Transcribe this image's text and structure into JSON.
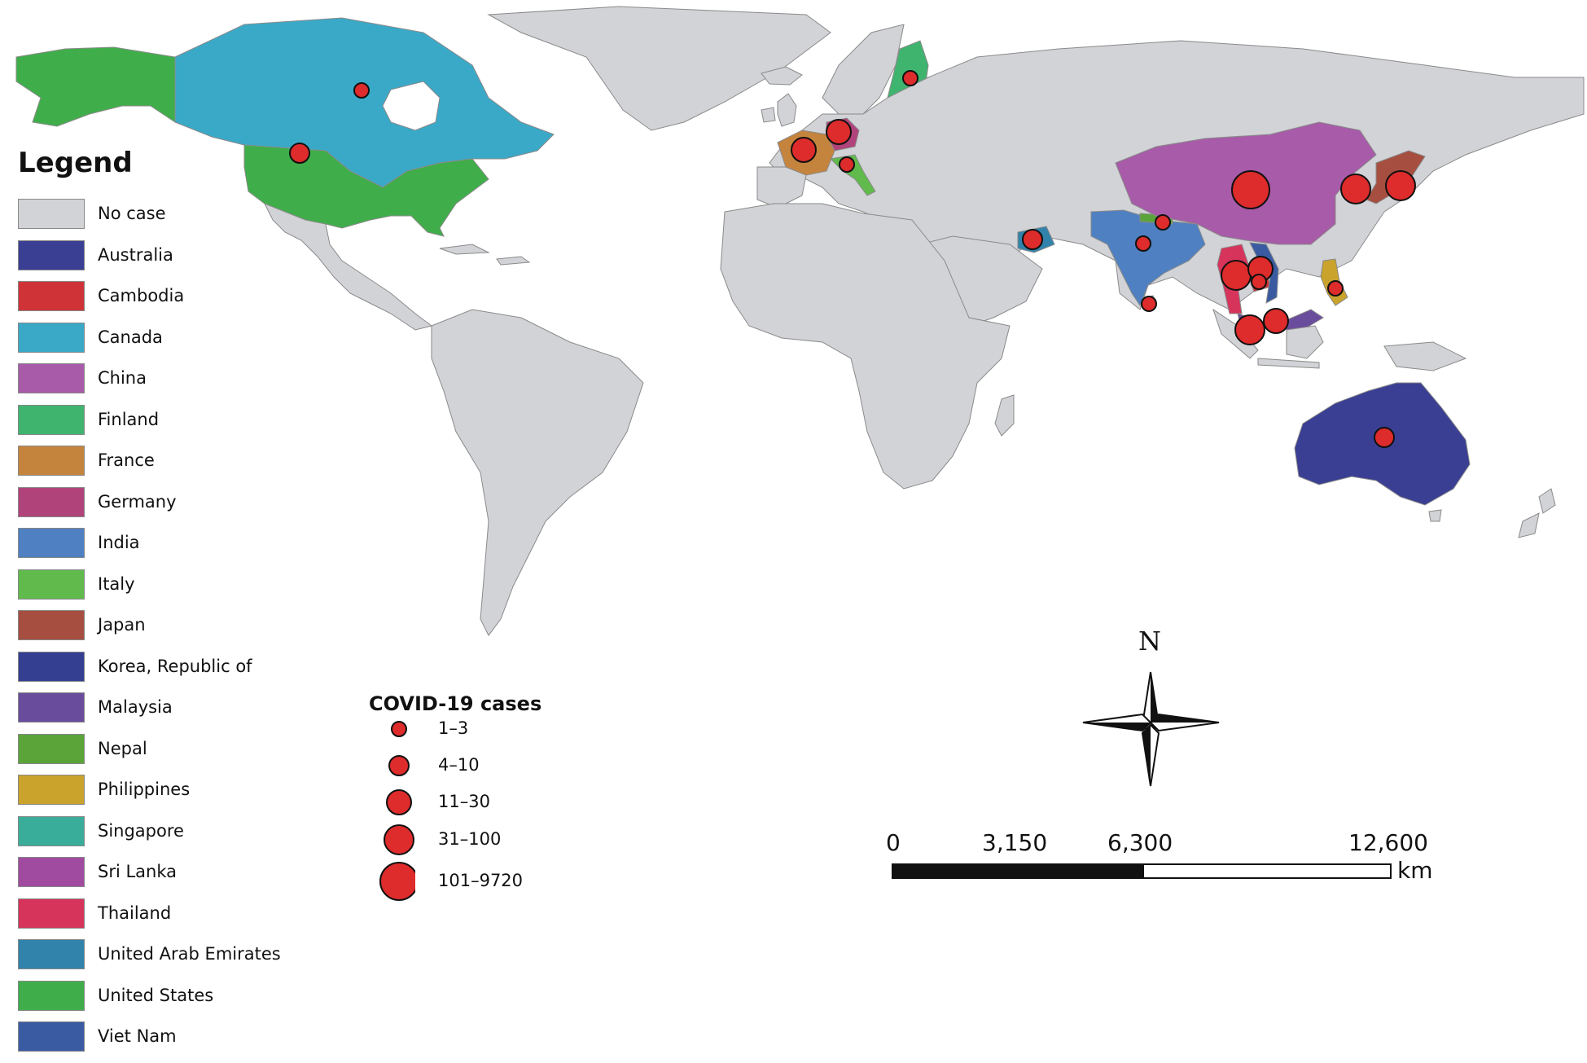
{
  "legend": {
    "title": "Legend",
    "items": [
      {
        "label": "No case",
        "color": "#d2d3d7"
      },
      {
        "label": "Australia",
        "color": "#3a3f93"
      },
      {
        "label": "Cambodia",
        "color": "#cf3338"
      },
      {
        "label": "Canada",
        "color": "#3aa9c8"
      },
      {
        "label": "China",
        "color": "#a85ba8"
      },
      {
        "label": "Finland",
        "color": "#3fb46e"
      },
      {
        "label": "France",
        "color": "#c5843d"
      },
      {
        "label": "Germany",
        "color": "#b0447a"
      },
      {
        "label": "India",
        "color": "#4f80c1"
      },
      {
        "label": "Italy",
        "color": "#60bb4c"
      },
      {
        "label": "Japan",
        "color": "#a64e40"
      },
      {
        "label": "Korea, Republic of",
        "color": "#343f92"
      },
      {
        "label": "Malaysia",
        "color": "#6a4c9c"
      },
      {
        "label": "Nepal",
        "color": "#5ba43a"
      },
      {
        "label": "Philippines",
        "color": "#c9a32c"
      },
      {
        "label": "Singapore",
        "color": "#3aad9a"
      },
      {
        "label": "Sri Lanka",
        "color": "#a04aa0"
      },
      {
        "label": "Thailand",
        "color": "#d6345b"
      },
      {
        "label": "United Arab Emirates",
        "color": "#3283ac"
      },
      {
        "label": "United States",
        "color": "#3fae4a"
      },
      {
        "label": "Viet Nam",
        "color": "#3a5ba2"
      }
    ]
  },
  "cases_legend": {
    "title": "COVID-19 cases",
    "bubble_color": "#de2b2b",
    "classes": [
      {
        "label": "1–3",
        "size_rank": 1
      },
      {
        "label": "4–10",
        "size_rank": 2
      },
      {
        "label": "11–30",
        "size_rank": 3
      },
      {
        "label": "31–100",
        "size_rank": 4
      },
      {
        "label": "101–9720",
        "size_rank": 5
      }
    ]
  },
  "country_bubbles": [
    {
      "country": "Canada",
      "size_rank": 1
    },
    {
      "country": "United States",
      "size_rank": 2
    },
    {
      "country": "Finland",
      "size_rank": 1
    },
    {
      "country": "Germany",
      "size_rank": 3
    },
    {
      "country": "France",
      "size_rank": 3
    },
    {
      "country": "Italy",
      "size_rank": 1
    },
    {
      "country": "United Arab Emirates",
      "size_rank": 2
    },
    {
      "country": "India",
      "size_rank": 1
    },
    {
      "country": "Nepal",
      "size_rank": 1
    },
    {
      "country": "Sri Lanka",
      "size_rank": 1
    },
    {
      "country": "China",
      "size_rank": 5
    },
    {
      "country": "Korea, Republic of",
      "size_rank": 4
    },
    {
      "country": "Japan",
      "size_rank": 4
    },
    {
      "country": "Thailand",
      "size_rank": 4
    },
    {
      "country": "Viet Nam",
      "size_rank": 3
    },
    {
      "country": "Cambodia",
      "size_rank": 1
    },
    {
      "country": "Philippines",
      "size_rank": 1
    },
    {
      "country": "Malaysia",
      "size_rank": 3
    },
    {
      "country": "Singapore",
      "size_rank": 4
    },
    {
      "country": "Australia",
      "size_rank": 2
    }
  ],
  "compass": {
    "north_label": "N"
  },
  "scale_bar": {
    "ticks": [
      "0",
      "3,150",
      "6,300",
      "12,600"
    ],
    "unit": "km"
  }
}
